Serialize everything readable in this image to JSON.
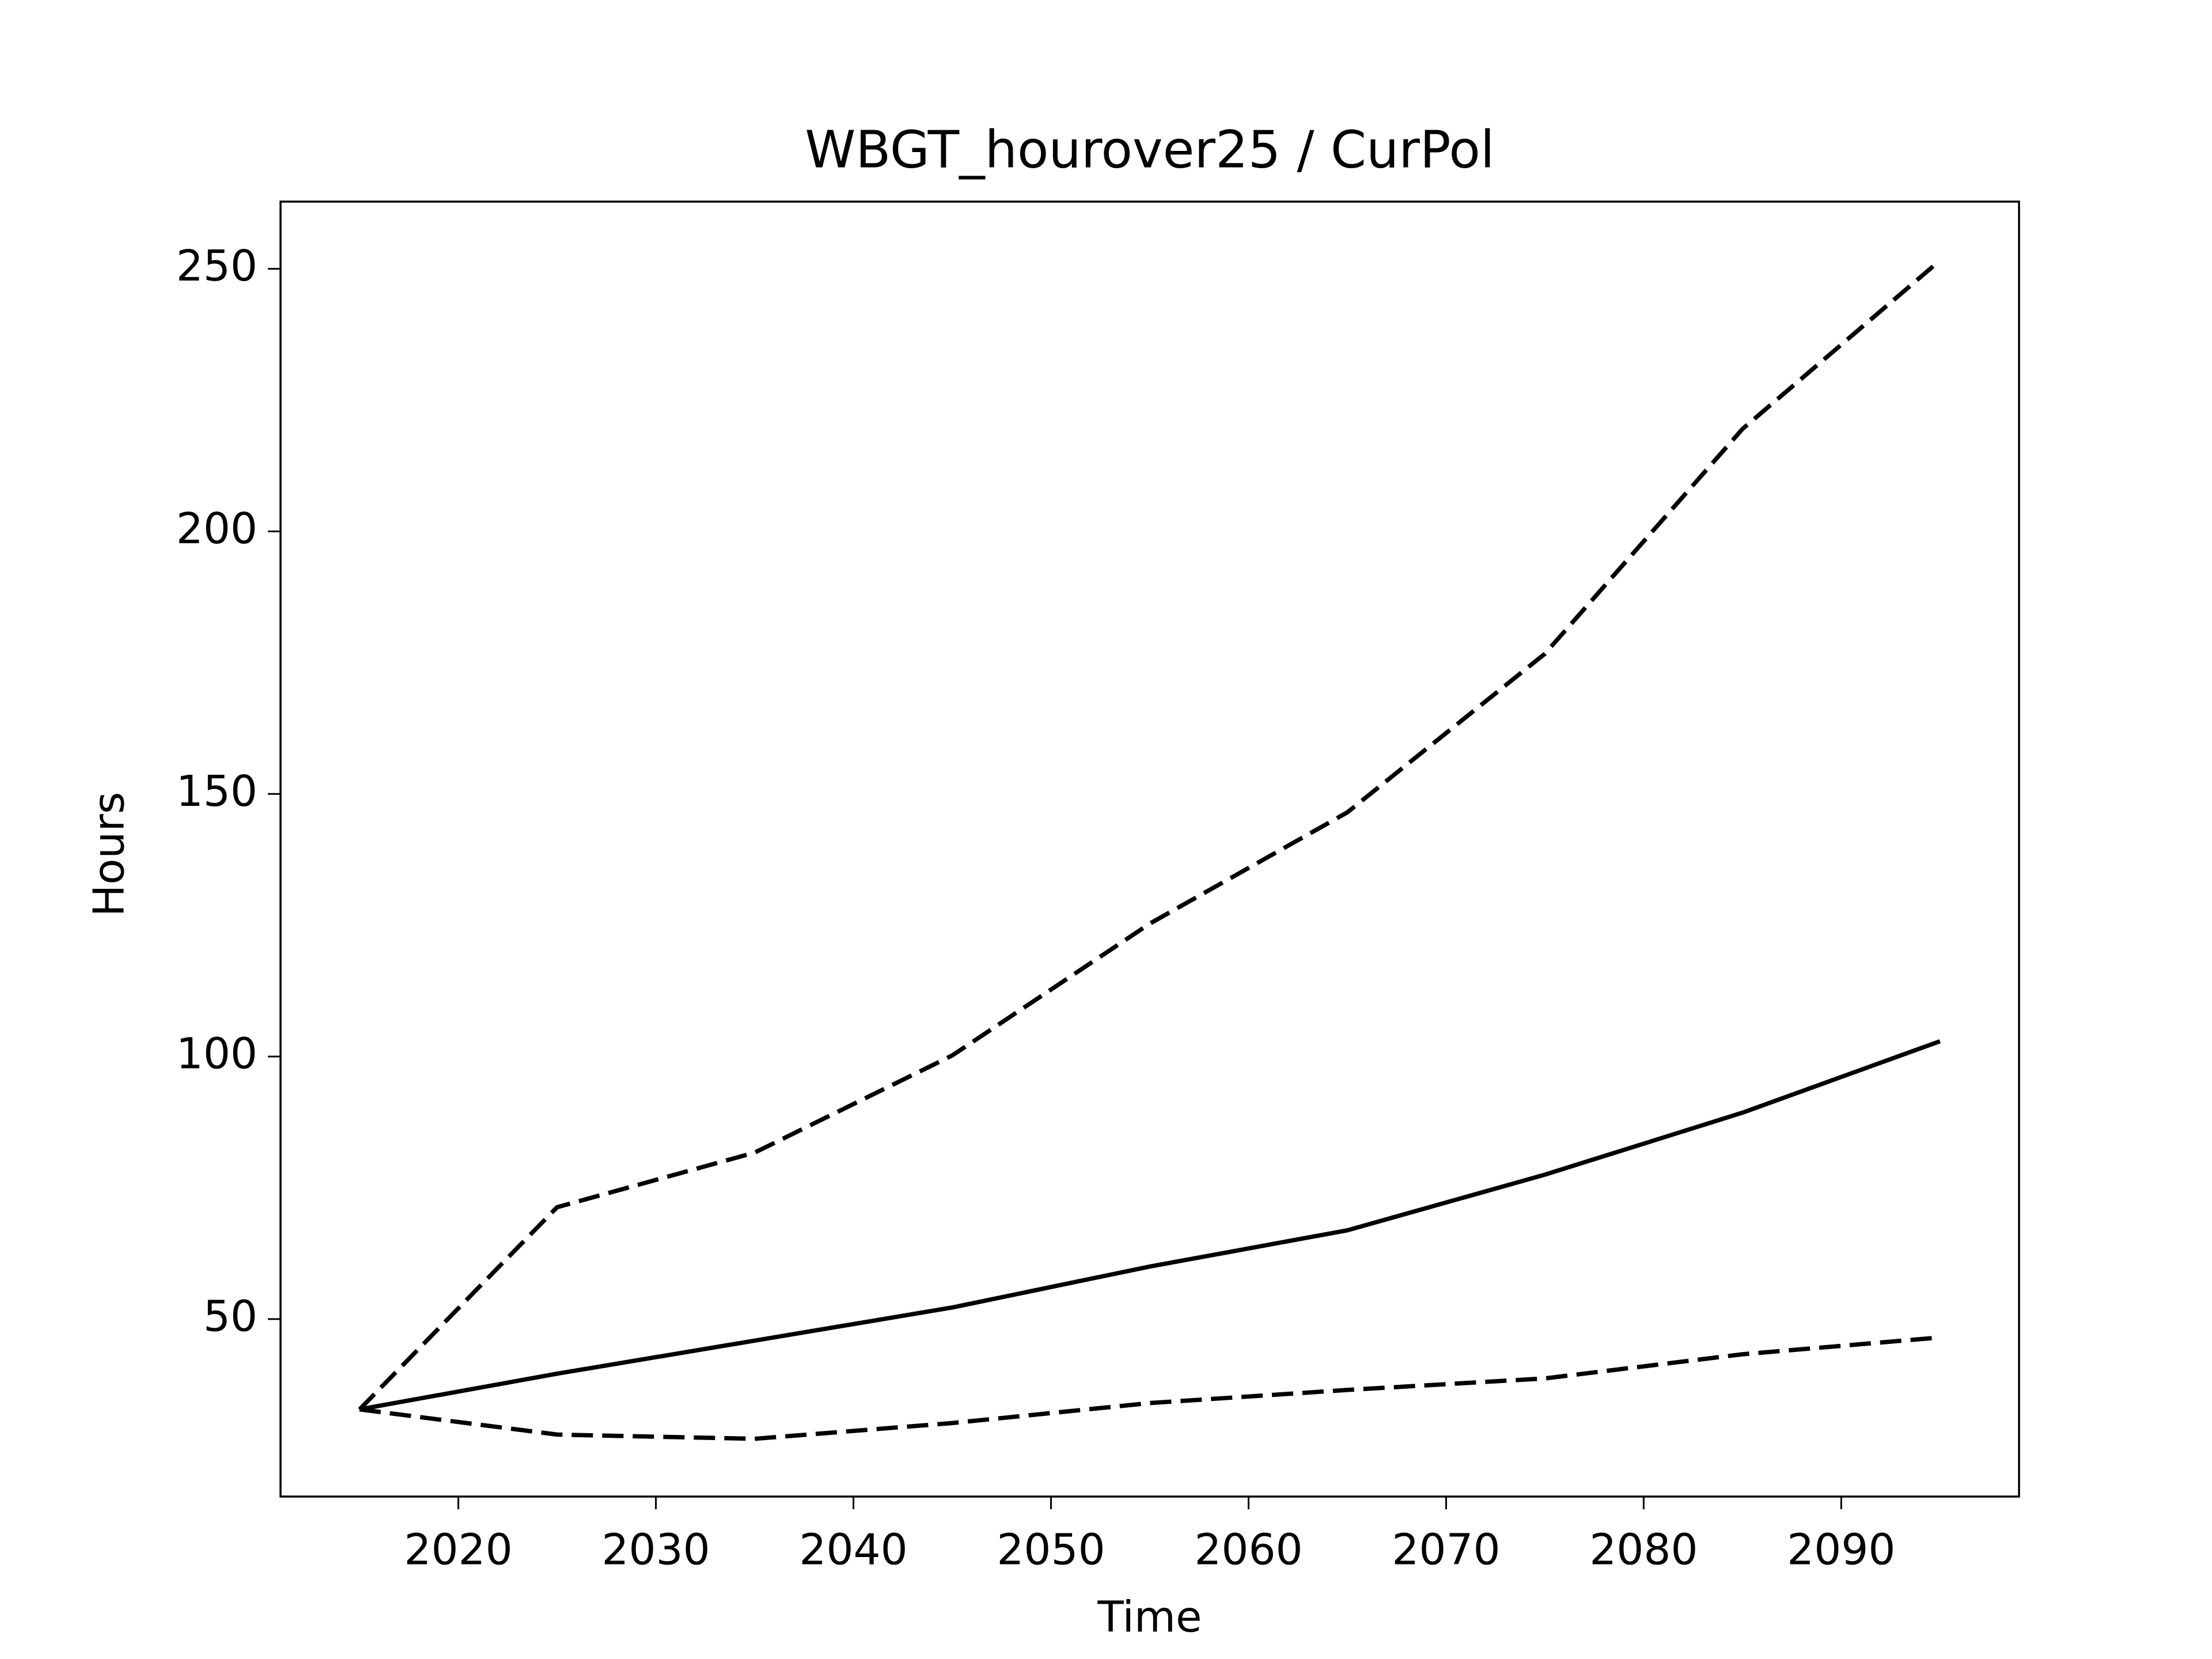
{
  "chart_data": {
    "type": "line",
    "title": "WBGT_hourover25 / CurPol",
    "xlabel": "Time",
    "ylabel": "Hours",
    "x": [
      2015,
      2025,
      2035,
      2045,
      2055,
      2065,
      2075,
      2085,
      2095
    ],
    "series": [
      {
        "color": "#000000",
        "style": "solid",
        "values": [
          32.8,
          39.6,
          45.9,
          52.2,
          60,
          66.9,
          77.5,
          89.3,
          102.9
        ]
      },
      {
        "color": "#000000",
        "style": "dashed",
        "values": [
          32.8,
          71.3,
          81.7,
          100.2,
          125.3,
          146.5,
          176.7,
          219.5,
          251.6
        ]
      },
      {
        "color": "#000000",
        "style": "dashed",
        "values": [
          32.8,
          28,
          27.2,
          30.2,
          34,
          36.5,
          38.7,
          43.3,
          46.5
        ]
      }
    ],
    "xlim": [
      2011,
      2099
    ],
    "xticks": [
      2020,
      2030,
      2040,
      2050,
      2060,
      2070,
      2080,
      2090
    ],
    "ylim": [
      16.2,
      262.8
    ],
    "yticks": [
      50,
      100,
      150,
      200,
      250
    ],
    "grid": false
  }
}
